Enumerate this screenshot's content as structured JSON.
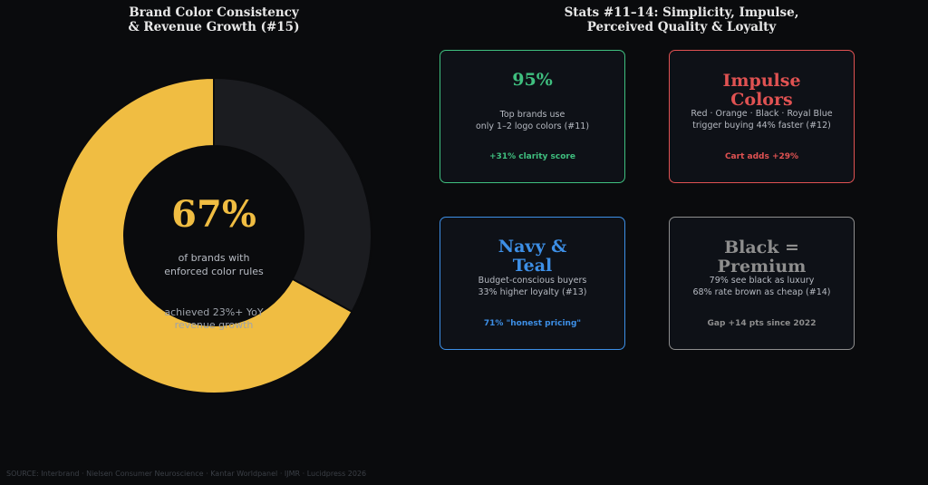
{
  "left_panel": {
    "title_line1": "Brand Color Consistency",
    "title_line2": "& Revenue Growth (#15)"
  },
  "right_panel": {
    "title_line1": "Stats #11–14: Simplicity, Impulse,",
    "title_line2": "Perceived Quality & Loyalty"
  },
  "chart_data": {
    "type": "pie",
    "title": "Brand Color Consistency & Revenue Growth (#15)",
    "slices": [
      {
        "label": "enforced color rules",
        "value": 67,
        "color": "#f0bd42"
      },
      {
        "label": "",
        "value": 33,
        "color": "#1b1c20"
      }
    ],
    "center_value": "67%",
    "center_label_line1": "of brands with",
    "center_label_line2": "enforced color rules",
    "center_sub_line1": "achieved 23%+ YoY",
    "center_sub_line2": "revenue growth"
  },
  "colors": {
    "donut_gold": "#f0bd42",
    "donut_dark": "#1b1c20",
    "green": "#3fbf7f",
    "red": "#e05252",
    "blue": "#3d8fe6",
    "gray": "#8e8e8e",
    "card_bg": "#0e1117"
  },
  "cards": [
    {
      "title_lines": [
        "95%"
      ],
      "desc_lines": [
        "Top brands use",
        "only 1–2 logo colors (#11)"
      ],
      "foot": "+31% clarity score",
      "color": "#3fbf7f"
    },
    {
      "title_lines": [
        "Impulse",
        "Colors"
      ],
      "desc_lines": [
        "Red · Orange · Black · Royal Blue",
        "trigger buying 44% faster (#12)"
      ],
      "foot": "Cart adds +29%",
      "color": "#e05252"
    },
    {
      "title_lines": [
        "Navy &",
        "Teal"
      ],
      "desc_lines": [
        "Budget-conscious buyers",
        "33% higher loyalty (#13)"
      ],
      "foot": "71% \"honest pricing\"",
      "color": "#3d8fe6"
    },
    {
      "title_lines": [
        "Black =",
        "Premium"
      ],
      "desc_lines": [
        "79% see black as luxury",
        "68% rate brown as cheap (#14)"
      ],
      "foot": "Gap +14 pts since 2022",
      "color": "#8e8e8e"
    }
  ],
  "source": "SOURCE: Interbrand · Nielsen Consumer Neuroscience · Kantar Worldpanel · IJMR · Lucidpress 2026"
}
